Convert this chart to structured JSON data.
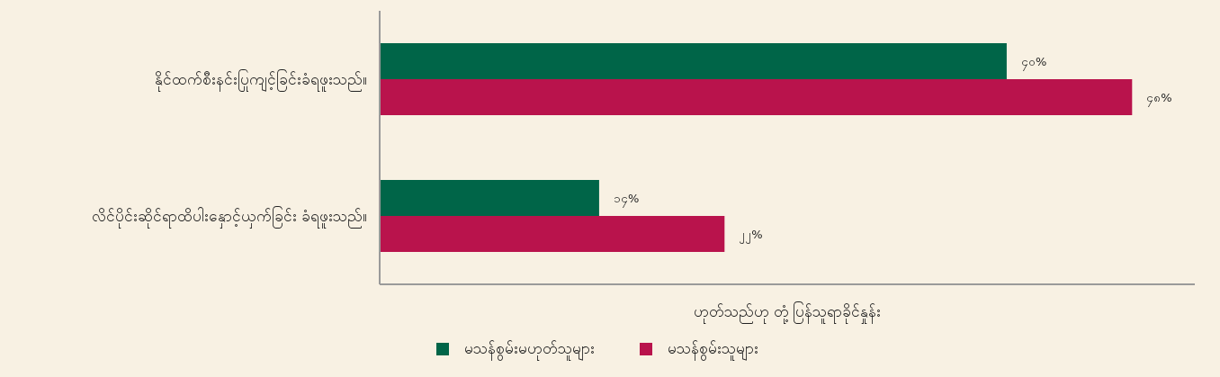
{
  "chart_data": {
    "type": "bar",
    "orientation": "horizontal",
    "categories": [
      "နိုင်ထက်စီးနင်းပြုကျင့်ခြင်းခံရဖူးသည်။",
      "လိင်ပိုင်းဆိုင်ရာထိပါးနှောင့်ယှက်ခြင်း ခံရဖူးသည်။"
    ],
    "series": [
      {
        "name": "မသန်စွမ်းမဟုတ်သူများ",
        "color": "#006548",
        "values": [
          40,
          14
        ],
        "value_labels": [
          "၄၀%",
          "၁၄%"
        ]
      },
      {
        "name": "မသန်စွမ်းသူများ",
        "color": "#b9134c",
        "values": [
          48,
          22
        ],
        "value_labels": [
          "၄၈%",
          "၂၂%"
        ]
      }
    ],
    "xlabel": "ဟုတ်သည်ဟု တုံ့ပြန်သူရာခိုင်နှုန်း",
    "xlim": [
      0,
      52
    ],
    "tick_labels": "y",
    "legend": "bottom"
  }
}
